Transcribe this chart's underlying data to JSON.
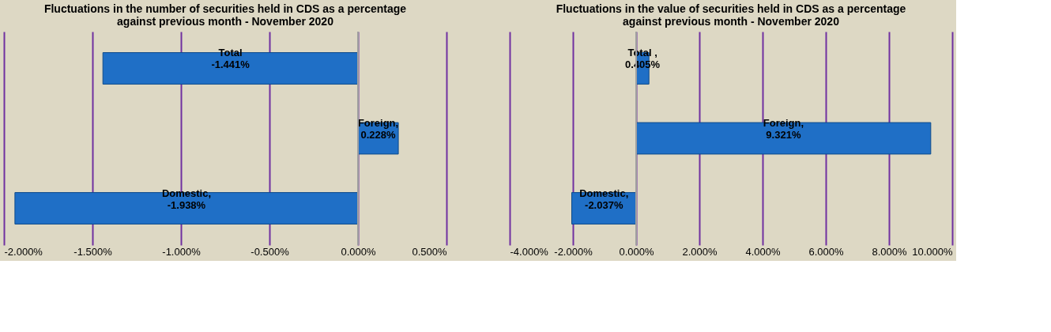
{
  "chart_data": [
    {
      "type": "bar",
      "orientation": "horizontal",
      "title": "Fluctuations in the number of securities held in CDS as a percentage against previous month - November 2020",
      "categories": [
        null,
        null,
        null
      ],
      "values": [
        -1.441,
        0.228,
        -1.938
      ],
      "color": "#1f6fc6",
      "value_labels": [
        "Total\n-1.441%",
        "Foreign,\n0.228%",
        "Domestic,\n-1.938%"
      ],
      "xlim": [
        -2,
        0.5
      ],
      "xticks": [
        {
          "value": -2,
          "label": "-2.000%"
        },
        {
          "value": -1.5,
          "label": "-1.500%"
        },
        {
          "value": -1,
          "label": "-1.000%"
        },
        {
          "value": -0.5,
          "label": "-0.500%"
        },
        {
          "value": 0,
          "label": "0.000%"
        },
        {
          "value": 0.5,
          "label": "0.500%"
        }
      ],
      "grid": "x",
      "tick_labels": "x",
      "ref_lines": [
        {
          "axis": "x",
          "value": 0,
          "color": "#a0a0a0"
        }
      ]
    },
    {
      "type": "bar",
      "orientation": "horizontal",
      "title": "Fluctuations in the value of securities held in CDS as a percentage against previous month - November 2020",
      "categories": [
        null,
        null,
        null
      ],
      "values": [
        0.405,
        9.321,
        -2.037
      ],
      "color": "#1f6fc6",
      "value_labels": [
        "Total ,\n0.405%",
        "Foreign,\n9.321%",
        "Domestic,\n-2.037%"
      ],
      "xlim": [
        -4,
        10
      ],
      "xticks": [
        {
          "value": -4,
          "label": "-4.000%"
        },
        {
          "value": -2,
          "label": "-2.000%"
        },
        {
          "value": 0,
          "label": "0.000%"
        },
        {
          "value": 2,
          "label": "2.000%"
        },
        {
          "value": 4,
          "label": "4.000%"
        },
        {
          "value": 6,
          "label": "6.000%"
        },
        {
          "value": 8,
          "label": "8.000%"
        },
        {
          "value": 10,
          "label": "10.000%"
        }
      ],
      "grid": "x",
      "tick_labels": "x",
      "ref_lines": [
        {
          "axis": "x",
          "value": 0,
          "color": "#a0a0a0"
        }
      ]
    }
  ]
}
